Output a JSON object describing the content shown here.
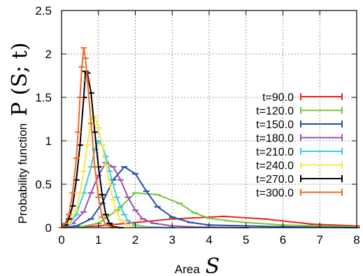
{
  "chart_data": {
    "type": "line",
    "xlabel_word": "Area",
    "xlabel_symbol": "S",
    "ylabel_word": "Probability function",
    "ylabel_symbol": "P (S; t)",
    "xlim": [
      0,
      8
    ],
    "ylim": [
      0,
      2.5
    ],
    "x_ticks": [
      "0",
      "1",
      "2",
      "3",
      "4",
      "5",
      "6",
      "7",
      "8"
    ],
    "y_ticks": [
      "0",
      "0.5",
      "1",
      "1.5",
      "2",
      "2.5"
    ],
    "grid": true,
    "legend_position": "right",
    "series": [
      {
        "name": "t=90.0",
        "color": "#e8241c",
        "x": [
          0.0,
          0.5,
          1.0,
          2.0,
          3.0,
          4.4,
          5.5,
          6.8,
          8.0
        ],
        "y": [
          0.0,
          0.01,
          0.02,
          0.06,
          0.1,
          0.13,
          0.1,
          0.04,
          0.02
        ]
      },
      {
        "name": "t=120.0",
        "color": "#78c43c",
        "x": [
          0.0,
          0.5,
          1.0,
          1.5,
          2.0,
          2.6,
          3.2,
          3.6,
          4.0,
          4.5,
          5.0,
          6.0,
          7.0,
          8.0
        ],
        "y": [
          0.0,
          0.01,
          0.05,
          0.2,
          0.4,
          0.38,
          0.28,
          0.17,
          0.11,
          0.08,
          0.06,
          0.03,
          0.02,
          0.01
        ]
      },
      {
        "name": "t=150.0",
        "color": "#1f4fa8",
        "x": [
          0.0,
          0.4,
          0.8,
          1.1,
          1.4,
          1.7,
          2.0,
          2.3,
          2.6,
          3.0,
          3.5,
          4.0,
          5.0,
          6.0,
          7.0,
          8.0
        ],
        "y": [
          0.0,
          0.02,
          0.1,
          0.28,
          0.55,
          0.7,
          0.62,
          0.42,
          0.24,
          0.12,
          0.06,
          0.03,
          0.02,
          0.01,
          0.005,
          0.0
        ]
      },
      {
        "name": "t=180.0",
        "color": "#9b50b4",
        "x": [
          0.0,
          0.3,
          0.6,
          0.8,
          1.0,
          1.2,
          1.4,
          1.6,
          1.8,
          2.0,
          2.2,
          2.5,
          3.0,
          3.5,
          4.0,
          5.0
        ],
        "y": [
          0.0,
          0.05,
          0.18,
          0.4,
          0.6,
          0.75,
          0.7,
          0.55,
          0.35,
          0.2,
          0.1,
          0.05,
          0.02,
          0.01,
          0.005,
          0.0
        ]
      },
      {
        "name": "t=210.0",
        "color": "#40c8dc",
        "x": [
          0.0,
          0.2,
          0.4,
          0.6,
          0.8,
          0.9,
          1.0,
          1.1,
          1.2,
          1.3,
          1.4,
          1.5,
          1.6,
          1.7,
          1.8,
          2.0,
          2.3,
          2.6,
          3.0
        ],
        "y": [
          0.0,
          0.04,
          0.15,
          0.4,
          0.7,
          0.9,
          1.0,
          0.95,
          0.82,
          0.65,
          0.5,
          0.35,
          0.24,
          0.15,
          0.08,
          0.03,
          0.01,
          0.005,
          0.0
        ]
      },
      {
        "name": "t=240.0",
        "color": "#f5e84a",
        "x": [
          0.0,
          0.2,
          0.4,
          0.5,
          0.6,
          0.7,
          0.8,
          0.9,
          1.0,
          1.1,
          1.2,
          1.3,
          1.4,
          1.5,
          1.6,
          1.8,
          2.0,
          2.3
        ],
        "y": [
          0.0,
          0.05,
          0.2,
          0.4,
          0.65,
          0.95,
          1.25,
          1.28,
          1.15,
          0.95,
          0.72,
          0.5,
          0.32,
          0.18,
          0.09,
          0.03,
          0.01,
          0.0
        ]
      },
      {
        "name": "t=270.0",
        "color": "#000000",
        "x": [
          0.0,
          0.1,
          0.2,
          0.3,
          0.4,
          0.5,
          0.6,
          0.65,
          0.7,
          0.8,
          0.9,
          1.0,
          1.1,
          1.2,
          1.3,
          1.4,
          1.6
        ],
        "y": [
          0.0,
          0.03,
          0.1,
          0.25,
          0.55,
          0.95,
          1.5,
          1.8,
          1.78,
          1.55,
          1.1,
          0.7,
          0.38,
          0.15,
          0.05,
          0.01,
          0.0
        ]
      },
      {
        "name": "t=300.0",
        "color": "#ef6a28",
        "x": [
          0.0,
          0.1,
          0.2,
          0.3,
          0.4,
          0.45,
          0.5,
          0.55,
          0.6,
          0.65,
          0.7,
          0.8,
          0.9,
          1.0,
          1.1,
          1.2,
          1.4
        ],
        "y": [
          0.0,
          0.05,
          0.15,
          0.4,
          0.8,
          1.1,
          1.5,
          1.85,
          2.07,
          1.95,
          1.7,
          1.2,
          0.7,
          0.35,
          0.12,
          0.03,
          0.0
        ]
      }
    ]
  }
}
